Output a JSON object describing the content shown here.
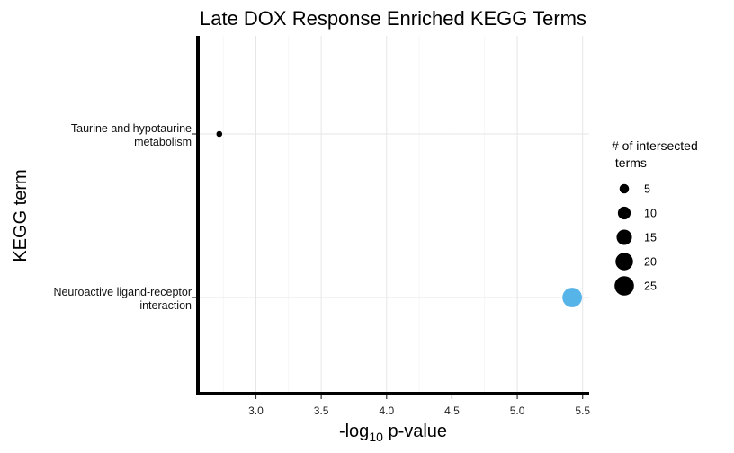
{
  "chart_data": {
    "type": "scatter",
    "title": "Late DOX Response Enriched KEGG Terms",
    "xlabel_main": "-log",
    "xlabel_sub": "10",
    "xlabel_rest": " p-value",
    "ylabel": "KEGG term",
    "xlim": [
      2.57,
      5.55
    ],
    "xticks": [
      "3.0",
      "3.5",
      "4.0",
      "4.5",
      "5.0",
      "5.5"
    ],
    "categories": [
      [
        "Taurine and hypotaurine",
        "metabolism"
      ],
      [
        "Neuroactive ligand-receptor",
        "interaction"
      ]
    ],
    "points": [
      {
        "term": "Taurine and hypotaurine metabolism",
        "x": 2.72,
        "size": 1,
        "color": "#000000"
      },
      {
        "term": "Neuroactive ligand-receptor interaction",
        "x": 5.42,
        "size": 23,
        "color": "#56B4E9"
      }
    ],
    "legend": {
      "title": [
        "# of intersected",
        " terms"
      ],
      "items": [
        {
          "label": "5",
          "value": 5
        },
        {
          "label": "10",
          "value": 10
        },
        {
          "label": "15",
          "value": 15
        },
        {
          "label": "20",
          "value": 20
        },
        {
          "label": "25",
          "value": 25
        }
      ]
    },
    "grid": true,
    "legend_position": "right"
  }
}
